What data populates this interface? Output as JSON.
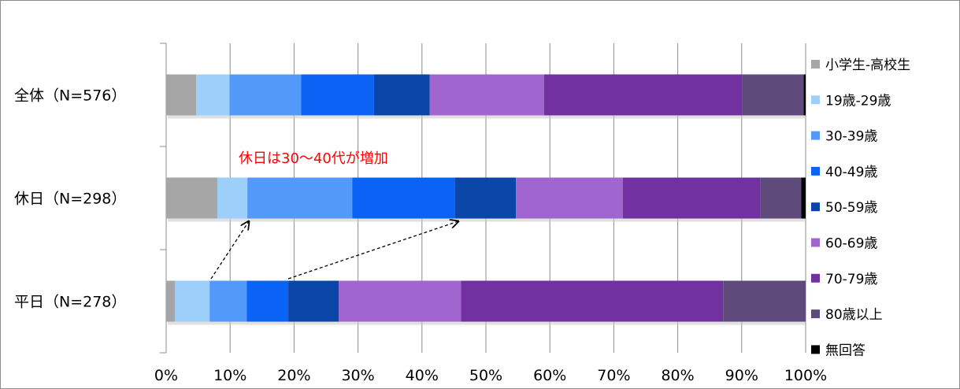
{
  "chart_data": {
    "type": "bar",
    "orientation": "horizontal",
    "stacked": "percent",
    "categories": [
      "全体（N=576）",
      "休日（N=298）",
      "平日（N=278）"
    ],
    "series": [
      {
        "name": "小学生-高校生",
        "color": "#a6a6a6",
        "values": [
          4.7,
          8.0,
          1.4
        ]
      },
      {
        "name": "19歳-29歳",
        "color": "#9dcffb",
        "values": [
          5.2,
          4.7,
          5.4
        ]
      },
      {
        "name": "30-39歳",
        "color": "#5299fa",
        "values": [
          11.2,
          16.4,
          5.8
        ]
      },
      {
        "name": "40-49歳",
        "color": "#0a63f5",
        "values": [
          11.4,
          16.1,
          6.5
        ]
      },
      {
        "name": "50-59歳",
        "color": "#0a45a8",
        "values": [
          8.7,
          9.5,
          7.9
        ]
      },
      {
        "name": "60-69歳",
        "color": "#a165d0",
        "values": [
          17.9,
          16.7,
          19.1
        ]
      },
      {
        "name": "70-79歳",
        "color": "#7231a1",
        "values": [
          31.0,
          21.5,
          41.0
        ]
      },
      {
        "name": "80歳以上",
        "color": "#5f4a7c",
        "values": [
          9.6,
          6.4,
          12.9
        ]
      },
      {
        "name": "無回答",
        "color": "#000000",
        "values": [
          0.3,
          0.7,
          0.0
        ]
      }
    ],
    "x_ticks": [
      "0%",
      "10%",
      "20%",
      "30%",
      "40%",
      "50%",
      "60%",
      "70%",
      "80%",
      "90%",
      "100%"
    ],
    "xlim": [
      0,
      100
    ],
    "grid": true,
    "legend_position": "right",
    "annotation": {
      "text": "休日は30〜40代が増加",
      "color": "#ff0000"
    }
  }
}
